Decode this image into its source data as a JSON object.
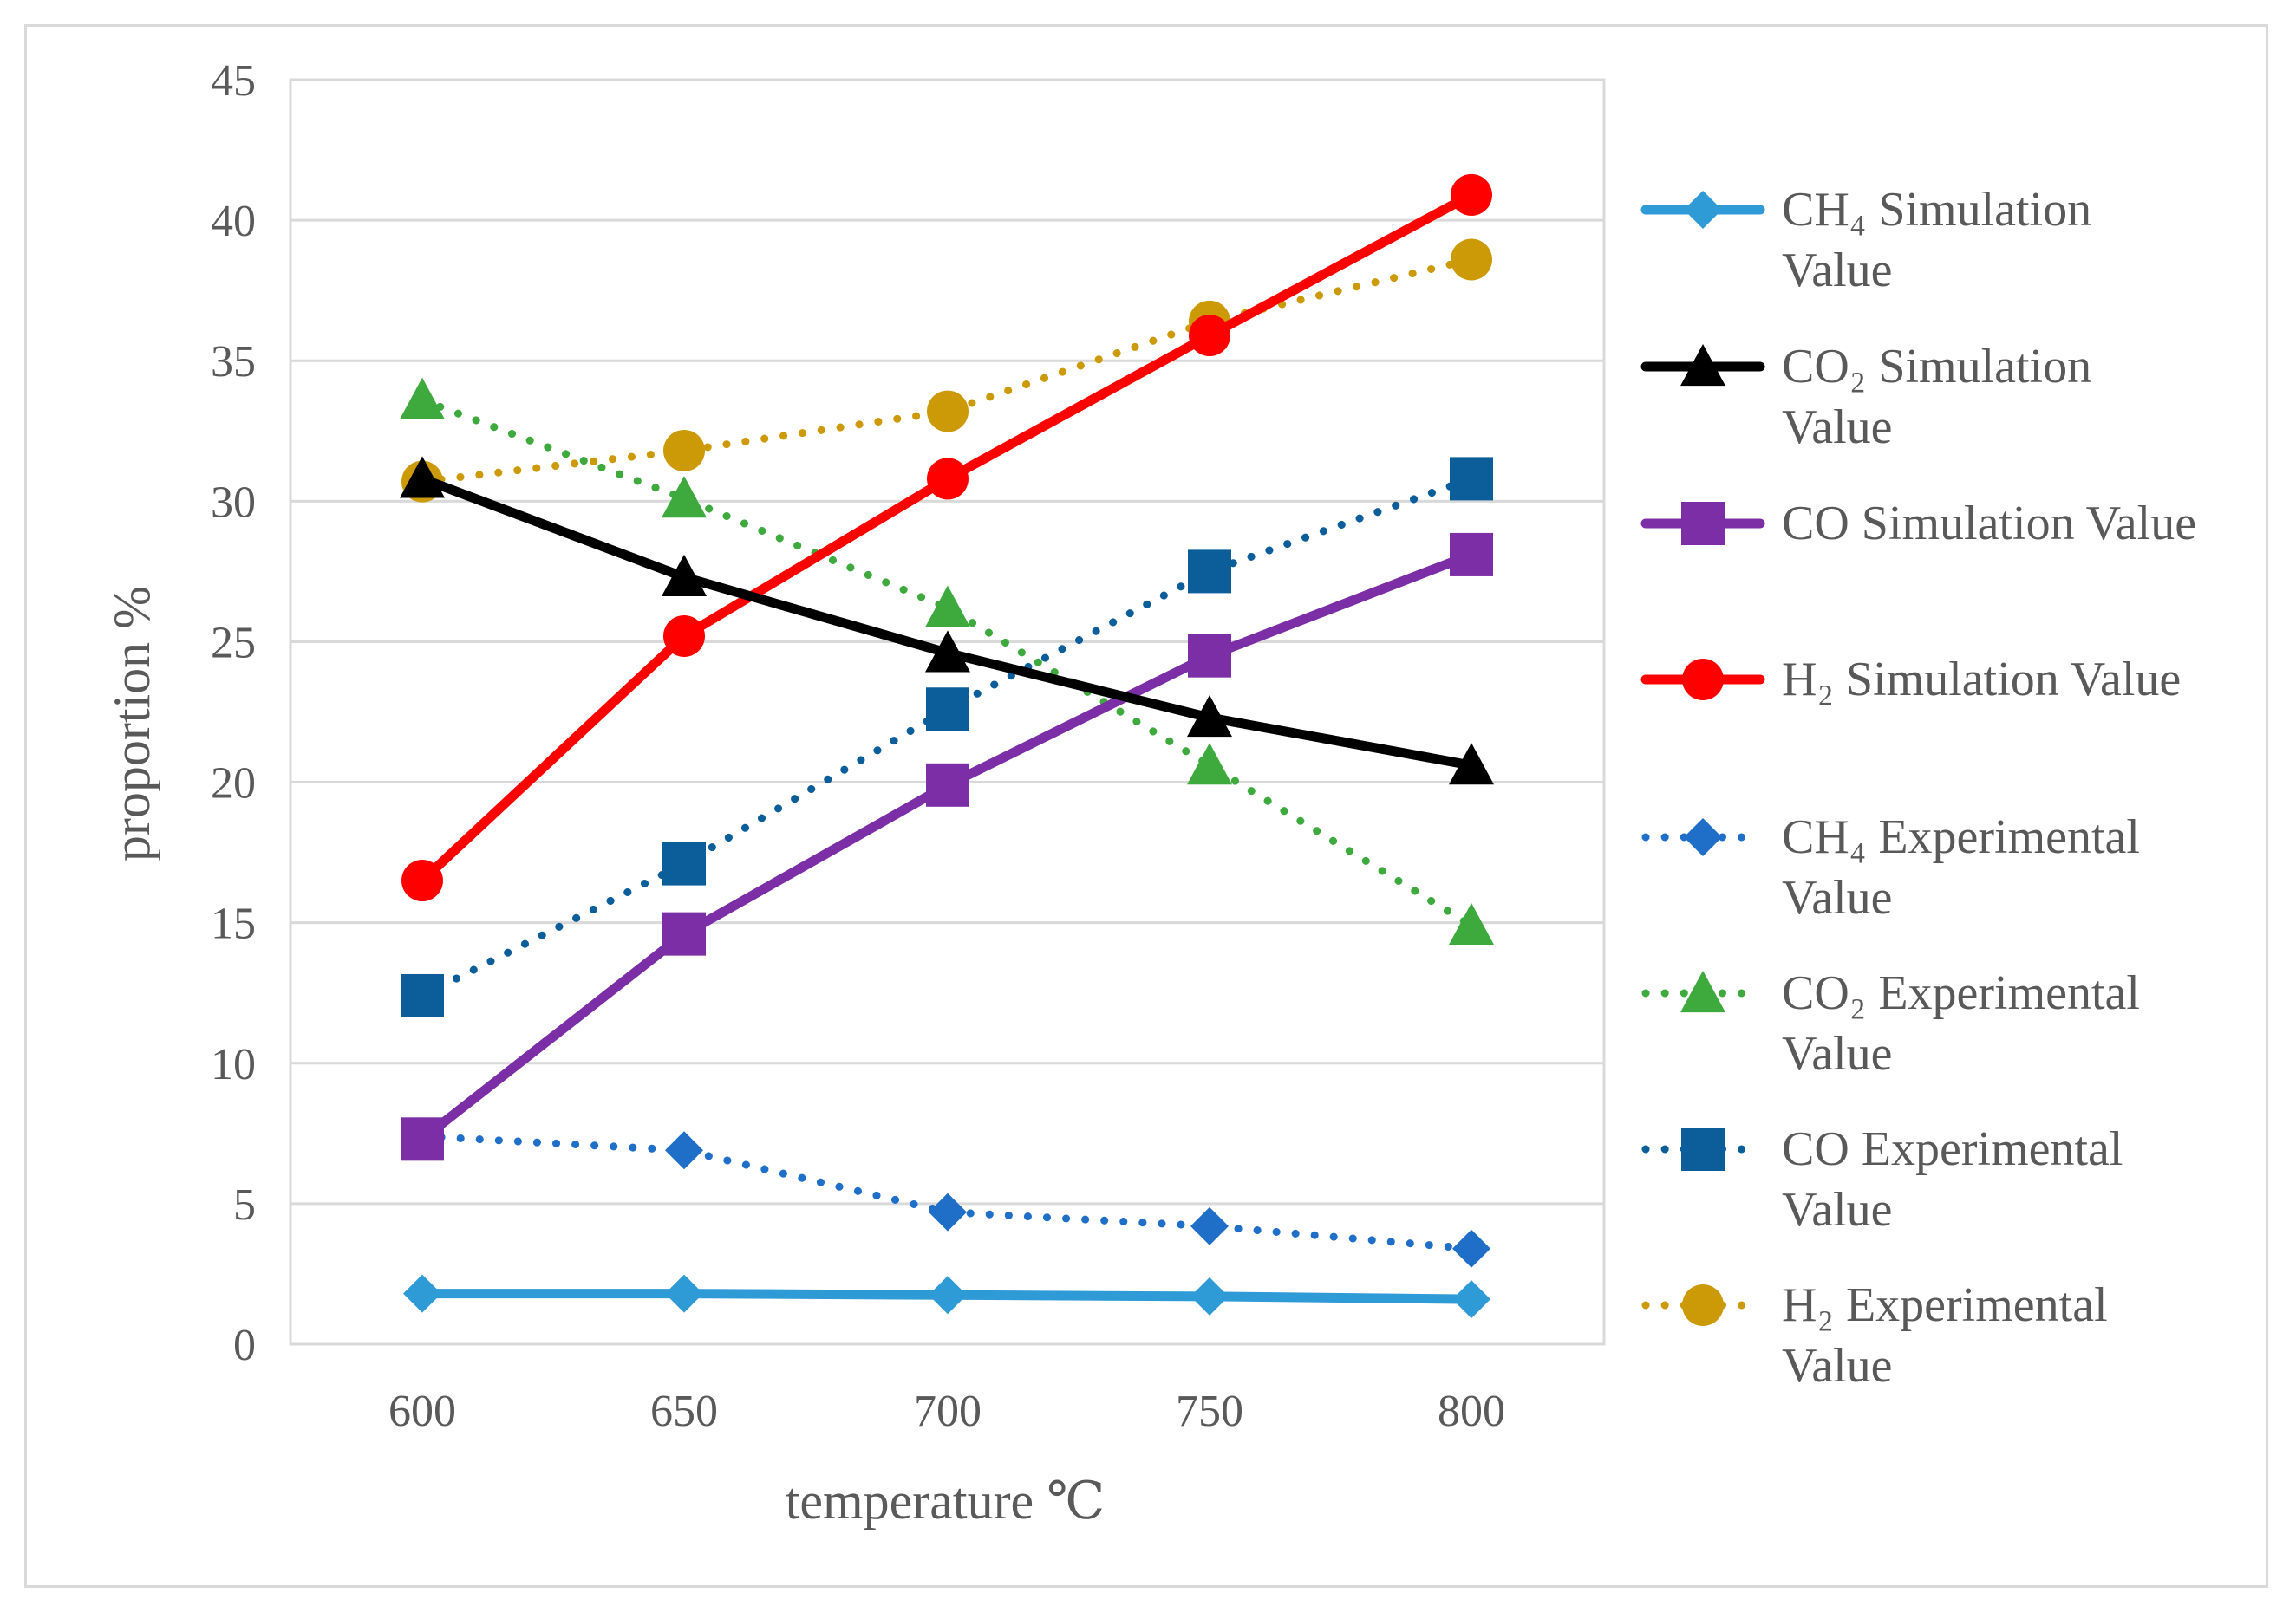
{
  "chart_data": {
    "type": "line",
    "xlabel": "temperature  ℃",
    "ylabel": "proportion  %",
    "x": [
      600,
      650,
      700,
      750,
      800
    ],
    "ylim": [
      0,
      45
    ],
    "yticks": [
      0,
      5,
      10,
      15,
      20,
      25,
      30,
      35,
      40,
      45
    ],
    "grid": "horizontal",
    "legend_position": "right",
    "series": [
      {
        "name": "CH4 Simulation Value",
        "legend": [
          "CH₄ Simulation",
          "Value"
        ],
        "values": [
          1.8,
          1.8,
          1.75,
          1.7,
          1.6
        ],
        "color": "#2e9ad6",
        "marker": "diamond",
        "style": "solid"
      },
      {
        "name": "CO2 Simulation Value",
        "legend": [
          "CO₂ Simulation",
          "Value"
        ],
        "values": [
          30.8,
          27.3,
          24.6,
          22.3,
          20.6
        ],
        "color": "#000000",
        "marker": "triangle",
        "style": "solid"
      },
      {
        "name": "CO Simulation Value",
        "legend": [
          "CO Simulation Value"
        ],
        "values": [
          7.3,
          14.6,
          19.9,
          24.5,
          28.1
        ],
        "color": "#7b2ea6",
        "marker": "square",
        "style": "solid"
      },
      {
        "name": "H2 Simulation Value",
        "legend": [
          "H₂ Simulation Value"
        ],
        "values": [
          16.5,
          25.2,
          30.8,
          35.9,
          40.9
        ],
        "color": "#ff0000",
        "marker": "circle",
        "style": "solid"
      },
      {
        "name": "CH4 Experimental Value",
        "legend": [
          "CH₄ Experimental",
          "Value"
        ],
        "values": [
          7.4,
          6.9,
          4.7,
          4.2,
          3.4
        ],
        "color": "#1f6fc9",
        "marker": "diamond",
        "style": "dotted"
      },
      {
        "name": "CO2 Experimental Value",
        "legend": [
          "CO₂ Experimental",
          "Value"
        ],
        "values": [
          33.6,
          30.1,
          26.2,
          20.6,
          14.9
        ],
        "color": "#3eaa3e",
        "marker": "triangle",
        "style": "dotted"
      },
      {
        "name": "CO Experimental Value",
        "legend": [
          "CO Experimental",
          "Value"
        ],
        "values": [
          12.4,
          17.1,
          22.6,
          27.5,
          30.8
        ],
        "color": "#0b5e99",
        "marker": "square",
        "style": "dotted"
      },
      {
        "name": "H2 Experimental Value",
        "legend": [
          "H₂ Experimental",
          "Value"
        ],
        "values": [
          30.7,
          31.8,
          33.2,
          36.4,
          38.6
        ],
        "color": "#cc9a06",
        "marker": "circle",
        "style": "dotted"
      }
    ]
  }
}
